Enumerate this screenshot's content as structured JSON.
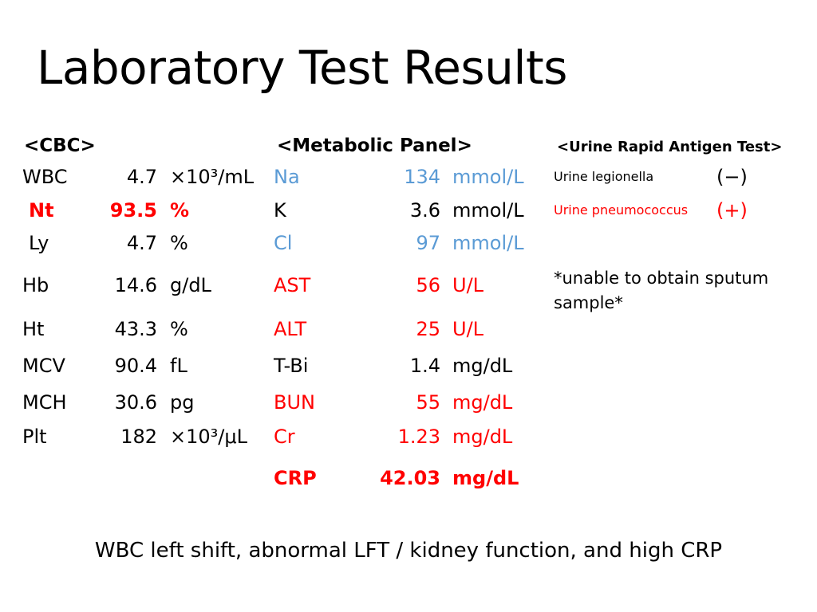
{
  "title": "Laboratory Test Results",
  "cbc": {
    "header": "<CBC>",
    "rows": [
      {
        "name": "WBC",
        "value": "4.7",
        "unit": "×10³/mL",
        "style": ""
      },
      {
        "name": "Nt",
        "value": "93.5",
        "unit": "%",
        "style": "red bold"
      },
      {
        "name": "Ly",
        "value": "4.7",
        "unit": "%",
        "style": ""
      },
      {
        "name": "Hb",
        "value": "14.6",
        "unit": "g/dL",
        "style": ""
      },
      {
        "name": "Ht",
        "value": "43.3",
        "unit": "%",
        "style": ""
      },
      {
        "name": "MCV",
        "value": "90.4",
        "unit": "fL",
        "style": ""
      },
      {
        "name": "MCH",
        "value": "30.6",
        "unit": "pg",
        "style": ""
      },
      {
        "name": "Plt",
        "value": "182",
        "unit": "×10³/μL",
        "style": ""
      }
    ]
  },
  "metabolic": {
    "header": "<Metabolic Panel>",
    "rows": [
      {
        "name": "Na",
        "value": "134",
        "unit": "mmol/L",
        "style": "blue"
      },
      {
        "name": "K",
        "value": "3.6",
        "unit": "mmol/L",
        "style": ""
      },
      {
        "name": "Cl",
        "value": "97",
        "unit": "mmol/L",
        "style": "blue"
      },
      {
        "name": "AST",
        "value": "56",
        "unit": "U/L",
        "style": "red"
      },
      {
        "name": "ALT",
        "value": "25",
        "unit": "U/L",
        "style": "red"
      },
      {
        "name": "T-Bi",
        "value": "1.4",
        "unit": "mg/dL",
        "style": ""
      },
      {
        "name": "BUN",
        "value": "55",
        "unit": "mg/dL",
        "style": "red"
      },
      {
        "name": "Cr",
        "value": "1.23",
        "unit": "mg/dL",
        "style": "red"
      },
      {
        "name": "CRP",
        "value": "42.03",
        "unit": "mg/dL",
        "style": "red bold"
      }
    ]
  },
  "urine": {
    "header": "<Urine Rapid Antigen Test>",
    "rows": [
      {
        "name": "Urine legionella",
        "result": "(−)",
        "style": ""
      },
      {
        "name": "Urine pneumococcus",
        "result": "(+)",
        "style": "red"
      }
    ],
    "note": "*unable to obtain sputum sample*"
  },
  "footer": "WBC left shift, abnormal LFT / kidney function, and high CRP",
  "colors": {
    "red": "#ff0000",
    "blue": "#5b9bd5"
  }
}
